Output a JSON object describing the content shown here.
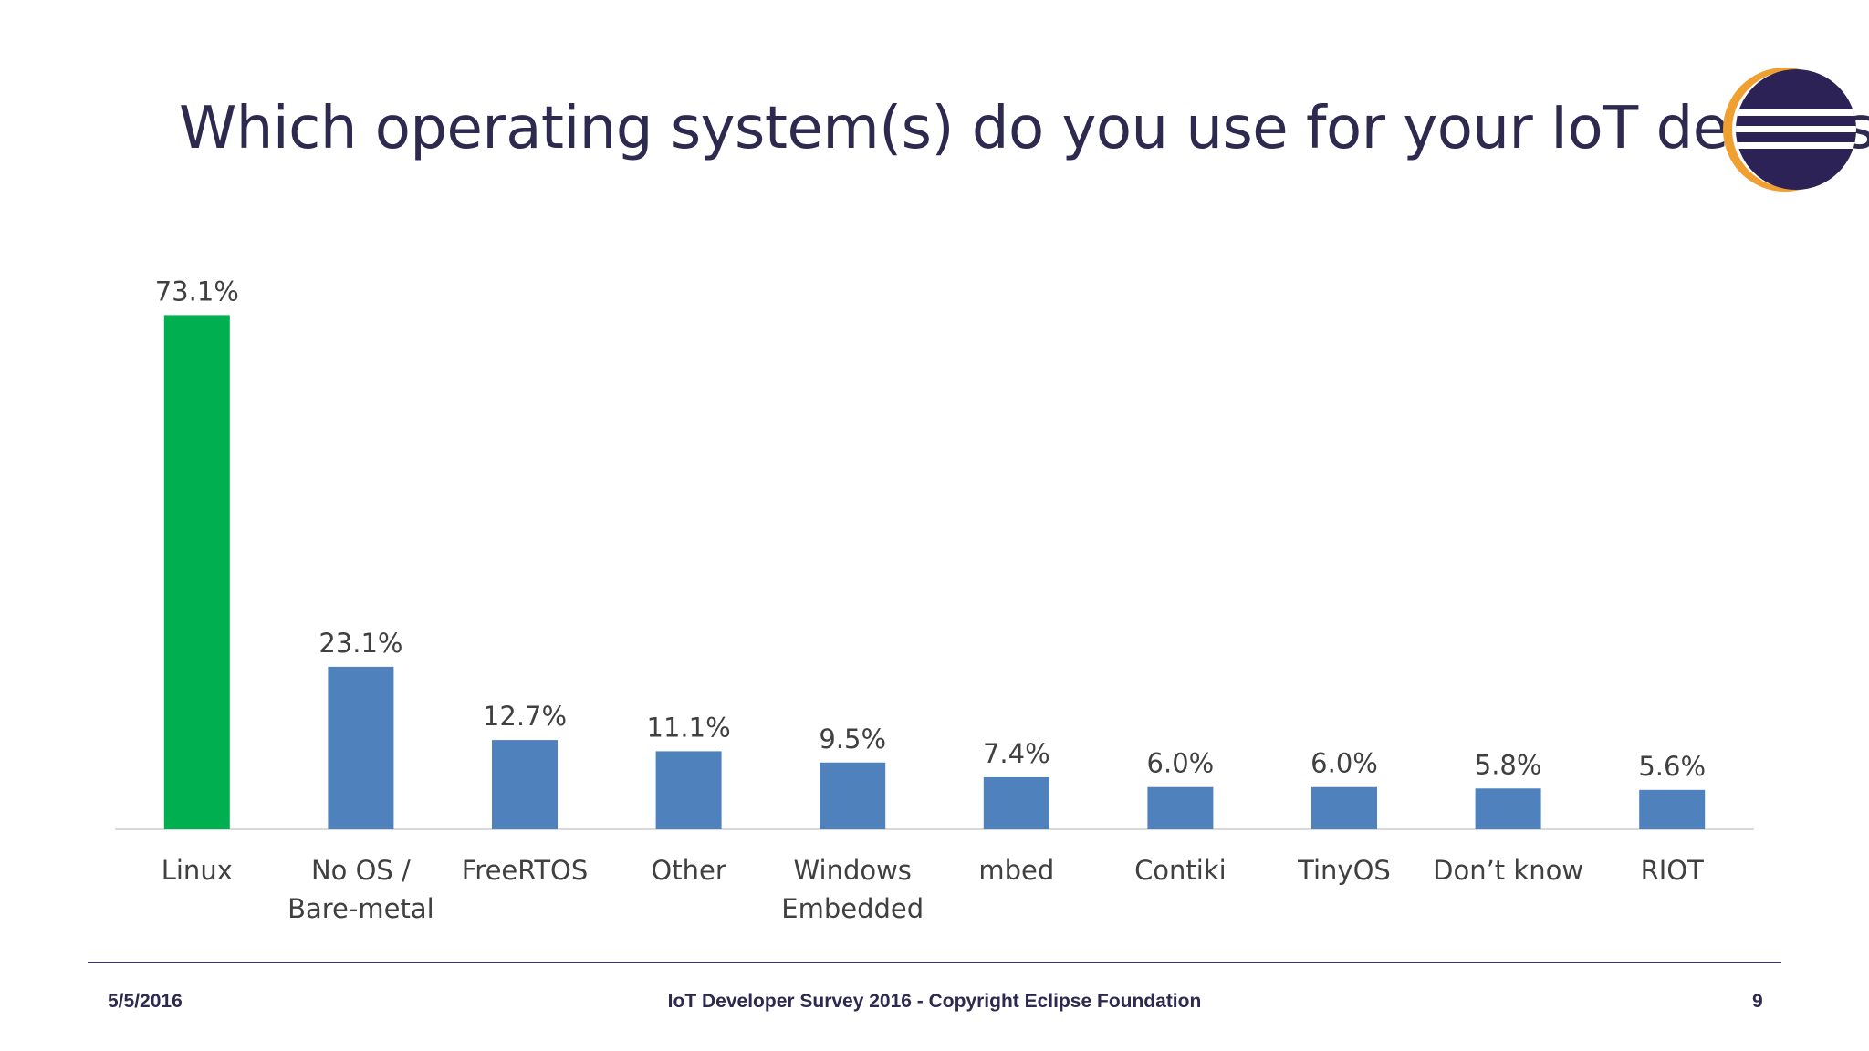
{
  "slide": {
    "title": "Which operating system(s) do you use for your IoT devices?"
  },
  "footer": {
    "date": "5/5/2016",
    "center": "IoT Developer Survey 2016 - Copyright Eclipse Foundation",
    "page": "9"
  },
  "logo": {
    "icon": "eclipse-logo-icon",
    "colors": {
      "ring": "#f0a030",
      "disc": "#2c2255",
      "stripes": "#ffffff"
    }
  },
  "colors": {
    "highlight_bar": "#00b050",
    "bar": "#4f81bd",
    "label_text": "#404040",
    "axis_line": "#d9d9d9"
  },
  "chart_data": {
    "type": "bar",
    "title": "Which operating system(s) do you use for your IoT devices?",
    "xlabel": "",
    "ylabel": "",
    "ylim": [
      0,
      80
    ],
    "grid": false,
    "legend": "none",
    "categories": [
      [
        "Linux"
      ],
      [
        "No OS /",
        "Bare-metal"
      ],
      [
        "FreeRTOS"
      ],
      [
        "Other"
      ],
      [
        "Windows",
        "Embedded"
      ],
      [
        "mbed"
      ],
      [
        "Contiki"
      ],
      [
        "TinyOS"
      ],
      [
        "Don’t know"
      ],
      [
        "RIOT"
      ]
    ],
    "values": [
      73.1,
      23.1,
      12.7,
      11.1,
      9.5,
      7.4,
      6.0,
      6.0,
      5.8,
      5.6
    ],
    "value_labels": [
      "73.1%",
      "23.1%",
      "12.7%",
      "11.1%",
      "9.5%",
      "7.4%",
      "6.0%",
      "6.0%",
      "5.8%",
      "5.6%"
    ],
    "highlight_index": 0
  }
}
